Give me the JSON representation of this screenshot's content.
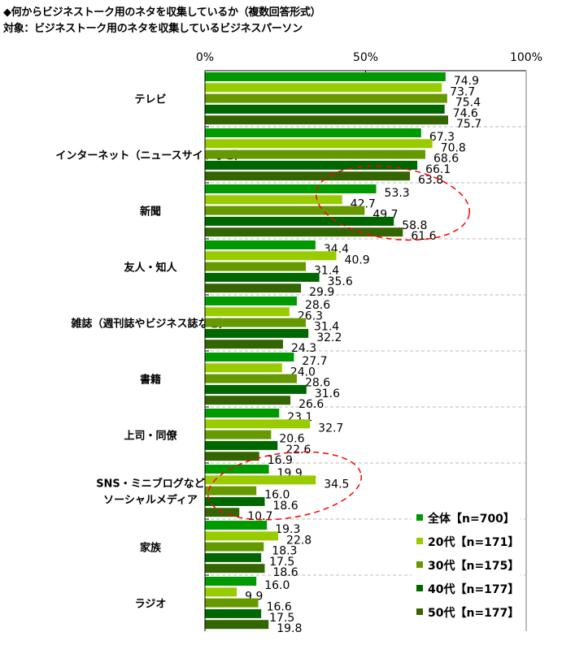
{
  "chart_data": {
    "type": "bar",
    "orientation": "horizontal",
    "title": "◆何からビジネストーク用のネタを収集しているか（複数回答形式）",
    "subtitle": "対象：ビジネストーク用のネタを収集しているビジネスパーソン",
    "xlim": [
      0,
      100
    ],
    "xticks": [
      "0%",
      "50%",
      "100%"
    ],
    "grid": true,
    "legend_position": "bottom-right",
    "categories": [
      [
        "テレビ"
      ],
      [
        "インターネット（ニュースサイトなど）"
      ],
      [
        "新聞"
      ],
      [
        "友人・知人"
      ],
      [
        "雑誌（週刊誌やビジネス誌など）"
      ],
      [
        "書籍"
      ],
      [
        "上司・同僚"
      ],
      [
        "SNS・ミニブログなど",
        "ソーシャルメディア"
      ],
      [
        "家族"
      ],
      [
        "ラジオ"
      ]
    ],
    "series": [
      {
        "name": "全体【n=700】",
        "color": "#009900",
        "values": [
          74.9,
          67.3,
          53.3,
          34.4,
          28.6,
          27.7,
          23.1,
          19.9,
          19.3,
          16.0
        ]
      },
      {
        "name": "20代【n=171】",
        "color": "#99CC00",
        "values": [
          73.7,
          70.8,
          42.7,
          40.9,
          26.3,
          24.0,
          32.7,
          34.5,
          22.8,
          9.9
        ]
      },
      {
        "name": "30代【n=175】",
        "color": "#669900",
        "values": [
          75.4,
          68.6,
          49.7,
          31.4,
          31.4,
          28.6,
          20.6,
          16.0,
          18.3,
          16.6
        ]
      },
      {
        "name": "40代【n=177】",
        "color": "#006600",
        "values": [
          74.6,
          66.1,
          58.8,
          35.6,
          32.2,
          31.6,
          22.6,
          18.6,
          17.5,
          17.5
        ]
      },
      {
        "name": "50代【n=177】",
        "color": "#336600",
        "values": [
          75.7,
          63.8,
          61.6,
          29.9,
          24.3,
          26.6,
          16.9,
          10.7,
          18.6,
          19.8
        ]
      }
    ],
    "annotations": [
      {
        "type": "dashed-ellipse",
        "color": "#ff0000",
        "category": "新聞"
      },
      {
        "type": "dashed-ellipse",
        "color": "#ff0000",
        "category": "SNS・ミニブログなど ソーシャルメディア"
      }
    ]
  }
}
